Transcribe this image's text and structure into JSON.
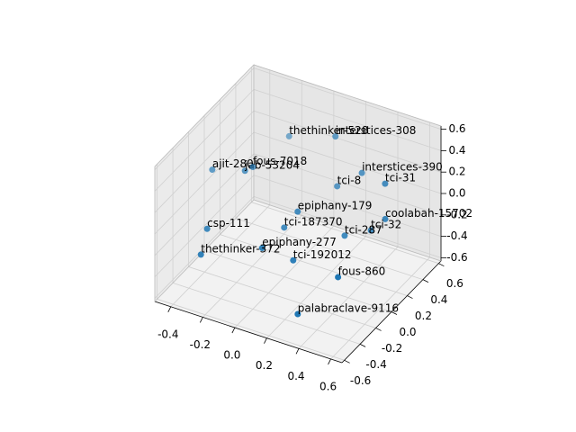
{
  "chart_data": {
    "type": "scatter3d",
    "labels": [
      "thethinker-528",
      "interstices-308",
      "ajit-280",
      "jab-53204",
      "fous-7018",
      "interstices-390",
      "tci-8",
      "tci-31",
      "epiphany-179",
      "coolabah-15702",
      "tci-187370",
      "tci-32",
      "csp-111",
      "tci-287",
      "epiphany-277",
      "thethinker-372",
      "tci-192012",
      "fous-860",
      "palabraclave-9116"
    ],
    "x": [
      -0.25,
      0.03,
      -0.46,
      -0.3,
      -0.28,
      0.2,
      0.08,
      0.36,
      0.01,
      0.4,
      -0.04,
      0.32,
      -0.34,
      0.22,
      -0.05,
      -0.31,
      0.09,
      0.38,
      0.3
    ],
    "y": [
      0.57,
      0.59,
      0.02,
      0.11,
      0.17,
      0.58,
      0.51,
      0.55,
      0.15,
      0.47,
      0.08,
      0.45,
      -0.29,
      0.32,
      -0.18,
      -0.43,
      -0.07,
      -0.09,
      -0.44
    ],
    "z": [
      0.13,
      0.25,
      0.13,
      0.13,
      0.13,
      0.0,
      -0.13,
      0.0,
      -0.13,
      -0.25,
      -0.25,
      -0.38,
      -0.13,
      -0.38,
      -0.25,
      -0.25,
      -0.38,
      -0.38,
      -0.5
    ],
    "color": "#1f77b4",
    "xlim": [
      -0.5,
      0.67
    ],
    "ylim": [
      -0.63,
      0.63
    ],
    "zlim": [
      -0.63,
      0.63
    ],
    "xticks": [
      -0.4,
      -0.2,
      {
        "value": 0,
        "label": "0.0"
      },
      0.2,
      0.4,
      0.6
    ],
    "yticks": [
      -0.6,
      -0.4,
      -0.2,
      {
        "value": 0,
        "label": "0.0"
      },
      0.2,
      0.4,
      0.6
    ],
    "zticks": [
      -0.6,
      -0.4,
      -0.2,
      {
        "value": 0,
        "label": "0.0"
      },
      0.2,
      0.4,
      0.6
    ],
    "grid": true
  }
}
